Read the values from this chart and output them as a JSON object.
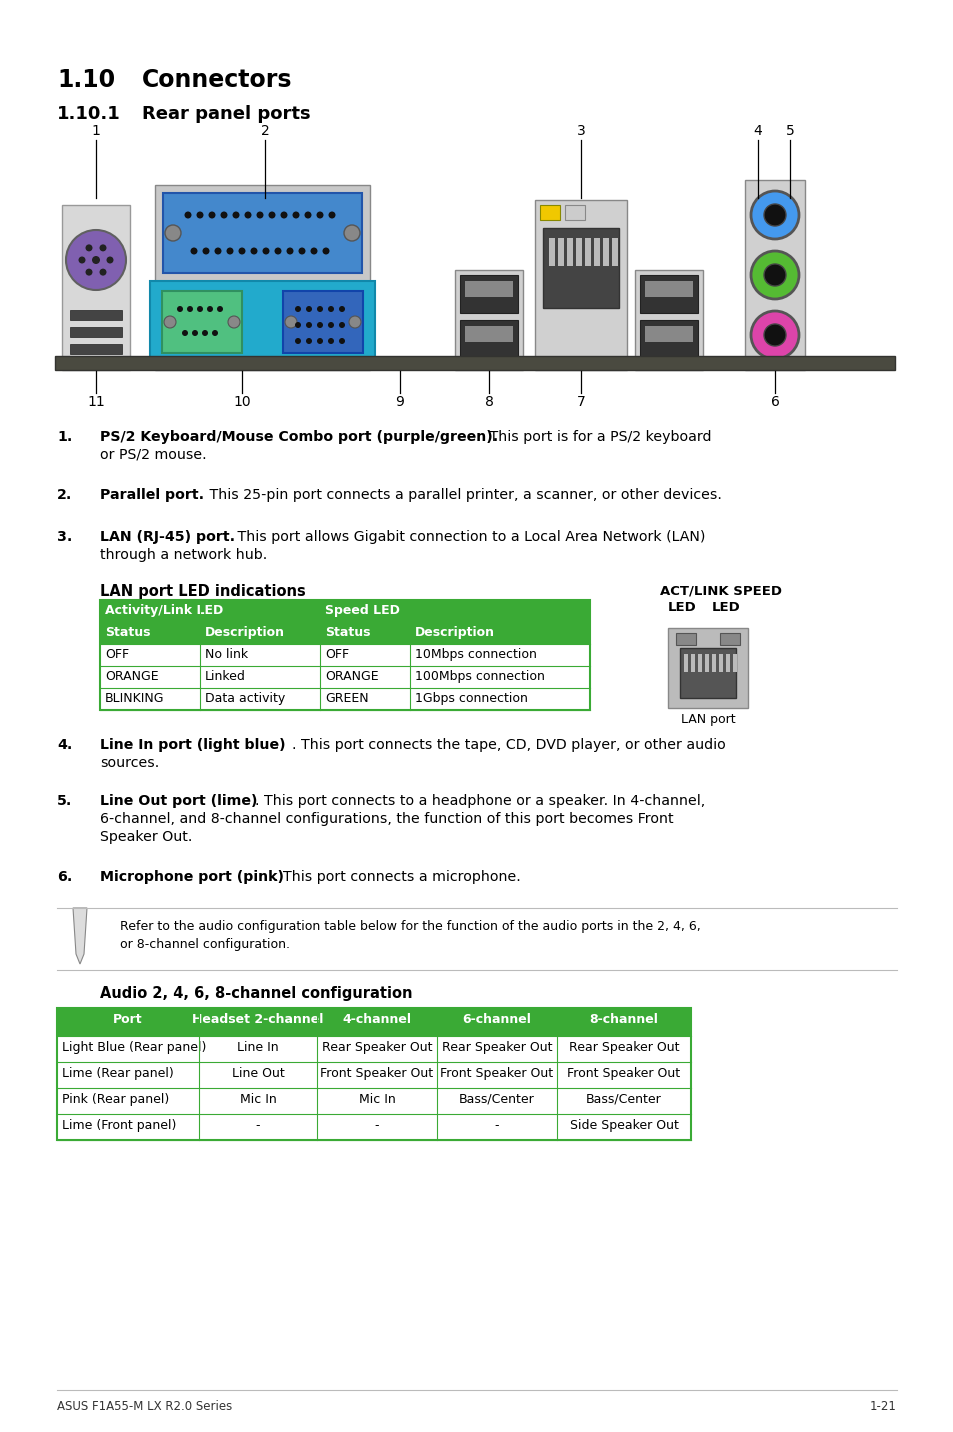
{
  "bg_color": "#ffffff",
  "title_section": "1.10",
  "title_text": "Connectors",
  "subtitle_section": "1.10.1",
  "subtitle_text": "Rear panel ports",
  "lan_table_header_bg": "#3aaa35",
  "lan_table_border": "#3aaa35",
  "lan_table_rows": [
    [
      "OFF",
      "No link",
      "OFF",
      "10Mbps connection"
    ],
    [
      "ORANGE",
      "Linked",
      "ORANGE",
      "100Mbps connection"
    ],
    [
      "BLINKING",
      "Data activity",
      "GREEN",
      "1Gbps connection"
    ]
  ],
  "audio_table_title": "Audio 2, 4, 6, 8-channel configuration",
  "audio_table_headers": [
    "Port",
    "Headset 2-channel",
    "4-channel",
    "6-channel",
    "8-channel"
  ],
  "audio_table_rows": [
    [
      "Light Blue (Rear panel)",
      "Line In",
      "Rear Speaker Out",
      "Rear Speaker Out",
      "Rear Speaker Out"
    ],
    [
      "Lime (Rear panel)",
      "Line Out",
      "Front Speaker Out",
      "Front Speaker Out",
      "Front Speaker Out"
    ],
    [
      "Pink (Rear panel)",
      "Mic In",
      "Mic In",
      "Bass/Center",
      "Bass/Center"
    ],
    [
      "Lime (Front panel)",
      "-",
      "-",
      "-",
      "Side Speaker Out"
    ]
  ],
  "audio_table_header_bg": "#3aaa35",
  "audio_table_header_text": "#ffffff",
  "audio_table_border": "#3aaa35",
  "footer_left": "ASUS F1A55-M LX R2.0 Series",
  "footer_right": "1-21",
  "note_text_1": "Refer to the audio configuration table below for the function of the audio ports in the 2, 4, 6,",
  "note_text_2": "or 8-channel configuration."
}
